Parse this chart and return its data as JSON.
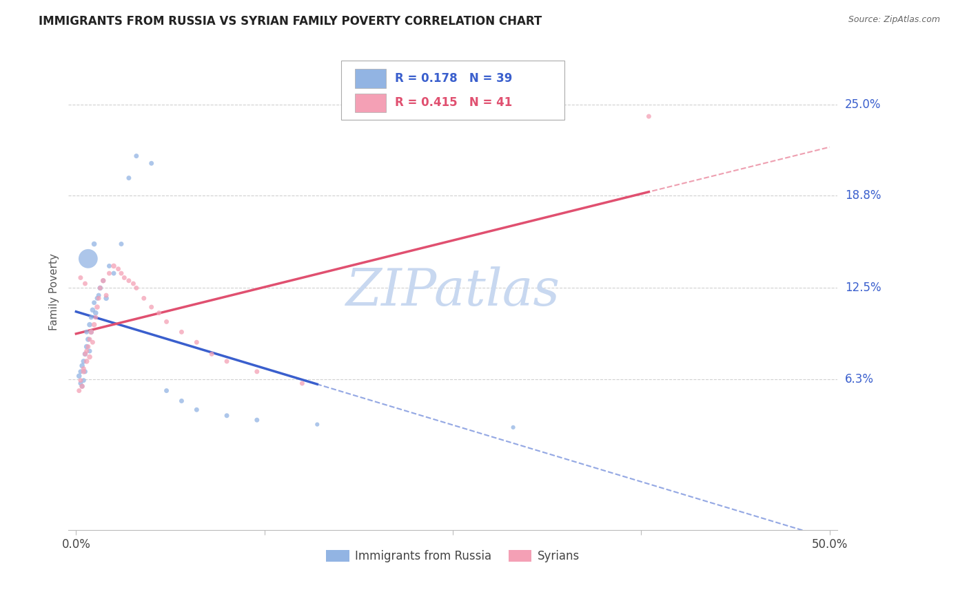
{
  "title": "IMMIGRANTS FROM RUSSIA VS SYRIAN FAMILY POVERTY CORRELATION CHART",
  "source": "Source: ZipAtlas.com",
  "ylabel": "Family Poverty",
  "legend_label1": "Immigrants from Russia",
  "legend_label2": "Syrians",
  "R1": 0.178,
  "N1": 39,
  "R2": 0.415,
  "N2": 41,
  "color_russia": "#92b4e3",
  "color_syria": "#f4a0b5",
  "trendline_russia_color": "#3a5fcd",
  "trendline_syria_color": "#e05070",
  "watermark_color": "#c8d8f0",
  "background": "#ffffff",
  "grid_color": "#d0d0d0",
  "russia_x": [
    0.002,
    0.003,
    0.003,
    0.004,
    0.004,
    0.005,
    0.005,
    0.006,
    0.006,
    0.007,
    0.007,
    0.008,
    0.009,
    0.009,
    0.01,
    0.01,
    0.011,
    0.012,
    0.013,
    0.014,
    0.015,
    0.016,
    0.018,
    0.02,
    0.022,
    0.025,
    0.03,
    0.035,
    0.04,
    0.05,
    0.06,
    0.07,
    0.08,
    0.1,
    0.12,
    0.008,
    0.012,
    0.29,
    0.16
  ],
  "russia_y": [
    0.065,
    0.06,
    0.068,
    0.072,
    0.058,
    0.075,
    0.062,
    0.08,
    0.068,
    0.085,
    0.095,
    0.09,
    0.082,
    0.1,
    0.095,
    0.105,
    0.11,
    0.115,
    0.108,
    0.118,
    0.12,
    0.125,
    0.13,
    0.118,
    0.14,
    0.135,
    0.155,
    0.2,
    0.215,
    0.21,
    0.055,
    0.048,
    0.042,
    0.038,
    0.035,
    0.145,
    0.155,
    0.03,
    0.032
  ],
  "russia_sizes": [
    30,
    25,
    25,
    30,
    25,
    30,
    25,
    30,
    25,
    30,
    25,
    30,
    25,
    30,
    30,
    25,
    30,
    25,
    30,
    25,
    25,
    30,
    25,
    30,
    25,
    25,
    25,
    25,
    25,
    25,
    25,
    25,
    25,
    25,
    25,
    400,
    30,
    20,
    20
  ],
  "syria_x": [
    0.002,
    0.003,
    0.004,
    0.005,
    0.005,
    0.006,
    0.007,
    0.007,
    0.008,
    0.009,
    0.009,
    0.01,
    0.011,
    0.012,
    0.013,
    0.014,
    0.015,
    0.016,
    0.018,
    0.02,
    0.022,
    0.025,
    0.028,
    0.03,
    0.032,
    0.035,
    0.038,
    0.04,
    0.045,
    0.05,
    0.055,
    0.06,
    0.07,
    0.08,
    0.09,
    0.1,
    0.12,
    0.15,
    0.003,
    0.006,
    0.38
  ],
  "syria_y": [
    0.055,
    0.062,
    0.058,
    0.07,
    0.068,
    0.08,
    0.075,
    0.082,
    0.085,
    0.078,
    0.09,
    0.095,
    0.088,
    0.1,
    0.105,
    0.112,
    0.118,
    0.125,
    0.13,
    0.12,
    0.135,
    0.14,
    0.138,
    0.135,
    0.132,
    0.13,
    0.128,
    0.125,
    0.118,
    0.112,
    0.108,
    0.102,
    0.095,
    0.088,
    0.08,
    0.075,
    0.068,
    0.06,
    0.132,
    0.128,
    0.242
  ],
  "syria_sizes": [
    25,
    25,
    30,
    25,
    30,
    25,
    30,
    25,
    25,
    30,
    25,
    30,
    25,
    30,
    25,
    30,
    25,
    25,
    30,
    25,
    25,
    30,
    25,
    25,
    25,
    25,
    25,
    25,
    25,
    25,
    25,
    25,
    25,
    25,
    25,
    25,
    25,
    25,
    25,
    25,
    25
  ],
  "xlim": [
    -0.005,
    0.505
  ],
  "ylim": [
    -0.04,
    0.285
  ],
  "yticks": [
    0.063,
    0.125,
    0.188,
    0.25
  ],
  "ytick_labels": [
    "6.3%",
    "12.5%",
    "18.8%",
    "25.0%"
  ],
  "xticks": [
    0.0,
    0.125,
    0.25,
    0.375,
    0.5
  ],
  "xtick_labels": [
    "0.0%",
    "",
    "",
    "",
    "50.0%"
  ]
}
